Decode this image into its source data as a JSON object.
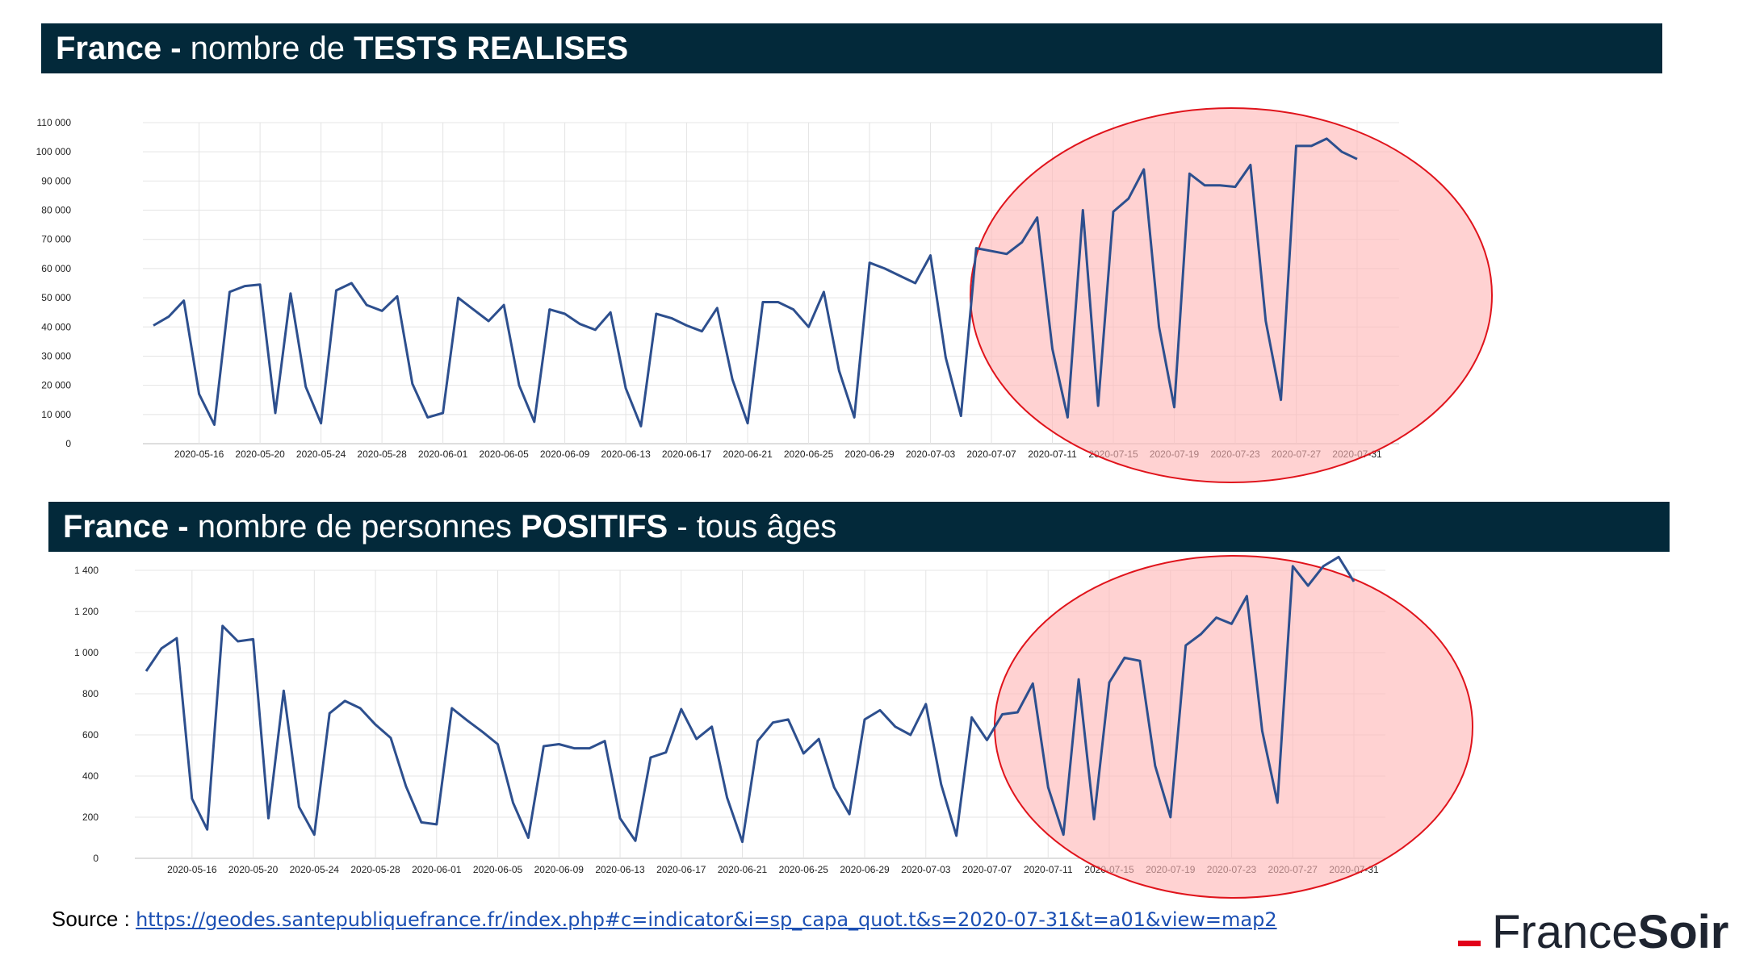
{
  "banners": {
    "tests": {
      "prefix": "France - ",
      "middle": "nombre de ",
      "emph": "TESTS REALISES",
      "suffix": ""
    },
    "positifs": {
      "prefix": "France - ",
      "middle": "nombre de personnes ",
      "emph": "POSITIFS",
      "suffix": " - tous âges"
    }
  },
  "source": {
    "label": "Source : ",
    "url": "https://geodes.santepubliquefrance.fr/index.php#c=indicator&i=sp_capa_quot.t&s=2020-07-31&t=a01&view=map2"
  },
  "logo": {
    "part1": "France",
    "part2": "Soir"
  },
  "colors": {
    "line": "#2d4f8e",
    "highlight_fill": "#ffb7b7",
    "highlight_stroke": "#e0141c",
    "banner": "#03293a",
    "grid": "#e4e4e4"
  },
  "chart_data": [
    {
      "type": "line",
      "title": "France - nombre de TESTS REALISES",
      "ylim": [
        0,
        110000
      ],
      "y_ticks": [
        "0",
        "10 000",
        "20 000",
        "30 000",
        "40 000",
        "50 000",
        "60 000",
        "70 000",
        "80 000",
        "90 000",
        "100 000",
        "110 000"
      ],
      "x_tick_labels": [
        "2020-05-16",
        "2020-05-20",
        "2020-05-24",
        "2020-05-28",
        "2020-06-01",
        "2020-06-05",
        "2020-06-09",
        "2020-06-13",
        "2020-06-17",
        "2020-06-21",
        "2020-06-25",
        "2020-06-29",
        "2020-07-03",
        "2020-07-07",
        "2020-07-11",
        "2020-07-15",
        "2020-07-19",
        "2020-07-23",
        "2020-07-27",
        "2020-07-31"
      ],
      "x_start": "2020-05-13",
      "x_end": "2020-07-31",
      "grid": true,
      "highlight": "ellipse around 2020-07-07 to 2020-07-31",
      "values": [
        40500,
        43500,
        49000,
        17000,
        6500,
        52000,
        54000,
        54500,
        10500,
        51500,
        19500,
        7000,
        52500,
        55000,
        47500,
        45500,
        50500,
        20500,
        9000,
        10500,
        50000,
        46000,
        42000,
        47500,
        20000,
        7500,
        46000,
        44500,
        41000,
        39000,
        45000,
        19000,
        6000,
        44500,
        43000,
        40500,
        38500,
        46500,
        22000,
        7000,
        48500,
        48500,
        46000,
        40000,
        52000,
        25000,
        9000,
        62000,
        60000,
        57500,
        55000,
        64500,
        29500,
        9500,
        67000,
        66000,
        65000,
        69000,
        77500,
        32500,
        9000,
        80000,
        13000,
        79500,
        84000,
        94000,
        40000,
        12500,
        92500,
        88500,
        88500,
        88000,
        95500,
        42000,
        15000,
        102000,
        102000,
        104500,
        100000,
        97500
      ]
    },
    {
      "type": "line",
      "title": "France - nombre de personnes POSITIFS - tous âges",
      "ylim": [
        0,
        1400
      ],
      "y_ticks": [
        "0",
        "200",
        "400",
        "600",
        "800",
        "1 000",
        "1 200",
        "1 400"
      ],
      "x_tick_labels": [
        "2020-05-16",
        "2020-05-20",
        "2020-05-24",
        "2020-05-28",
        "2020-06-01",
        "2020-06-05",
        "2020-06-09",
        "2020-06-13",
        "2020-06-17",
        "2020-06-21",
        "2020-06-25",
        "2020-06-29",
        "2020-07-03",
        "2020-07-07",
        "2020-07-11",
        "2020-07-15",
        "2020-07-19",
        "2020-07-23",
        "2020-07-27",
        "2020-07-31"
      ],
      "x_start": "2020-05-13",
      "x_end": "2020-07-31",
      "grid": true,
      "highlight": "ellipse around 2020-07-08 to 2020-07-31",
      "values": [
        910,
        1020,
        1070,
        290,
        140,
        1130,
        1055,
        1065,
        195,
        815,
        250,
        115,
        705,
        765,
        730,
        650,
        585,
        350,
        175,
        165,
        730,
        670,
        615,
        555,
        270,
        100,
        545,
        555,
        535,
        535,
        570,
        195,
        85,
        490,
        515,
        725,
        580,
        640,
        295,
        80,
        570,
        660,
        675,
        510,
        580,
        345,
        215,
        675,
        720,
        640,
        600,
        750,
        360,
        110,
        685,
        575,
        700,
        710,
        850,
        345,
        115,
        870,
        190,
        855,
        975,
        960,
        450,
        200,
        1035,
        1090,
        1170,
        1140,
        1275,
        620,
        270,
        1420,
        1325,
        1420,
        1465,
        1345
      ]
    }
  ]
}
